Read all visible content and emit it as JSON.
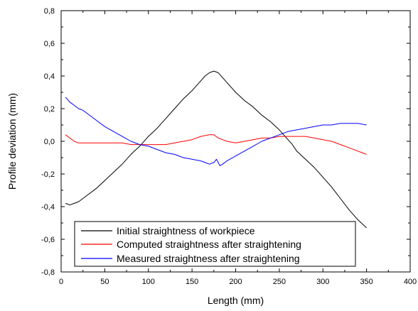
{
  "chart_data": {
    "type": "line",
    "title": "",
    "xlabel": "Length (mm)",
    "ylabel": "Profile deviation (mm)",
    "xlim": [
      0,
      400
    ],
    "ylim": [
      -0.8,
      0.8
    ],
    "xticks": [
      0,
      50,
      100,
      150,
      200,
      250,
      300,
      350,
      400
    ],
    "yticks": [
      -0.8,
      -0.6,
      -0.4,
      -0.2,
      0.0,
      0.2,
      0.4,
      0.6,
      0.8
    ],
    "xtick_labels": [
      "0",
      "50",
      "100",
      "150",
      "200",
      "250",
      "300",
      "350",
      "400"
    ],
    "ytick_labels": [
      "-0,8",
      "-0,6",
      "-0,4",
      "-0,2",
      "0,0",
      "0,2",
      "0,4",
      "0,6",
      "0,8"
    ],
    "grid": false,
    "legend_position": "bottom-left",
    "series": [
      {
        "name": "Initial straightness of workpiece",
        "color": "#000000",
        "x": [
          5,
          10,
          15,
          20,
          25,
          30,
          40,
          50,
          60,
          70,
          80,
          90,
          100,
          110,
          120,
          130,
          140,
          150,
          160,
          165,
          170,
          175,
          180,
          185,
          190,
          200,
          210,
          220,
          230,
          240,
          250,
          255,
          260,
          265,
          270,
          280,
          290,
          300,
          310,
          320,
          330,
          340,
          350
        ],
        "y": [
          -0.38,
          -0.39,
          -0.38,
          -0.37,
          -0.35,
          -0.33,
          -0.29,
          -0.24,
          -0.19,
          -0.14,
          -0.08,
          -0.03,
          0.03,
          0.08,
          0.14,
          0.2,
          0.26,
          0.31,
          0.37,
          0.4,
          0.42,
          0.43,
          0.42,
          0.39,
          0.36,
          0.3,
          0.25,
          0.21,
          0.16,
          0.12,
          0.07,
          0.04,
          0.01,
          -0.02,
          -0.06,
          -0.11,
          -0.16,
          -0.22,
          -0.28,
          -0.35,
          -0.42,
          -0.48,
          -0.53
        ]
      },
      {
        "name": "Computed straightness after straightening",
        "color": "#ff0000",
        "x": [
          5,
          10,
          15,
          20,
          25,
          30,
          40,
          50,
          60,
          70,
          80,
          90,
          100,
          110,
          120,
          130,
          140,
          150,
          160,
          170,
          175,
          180,
          185,
          190,
          200,
          210,
          220,
          230,
          240,
          250,
          260,
          270,
          280,
          290,
          300,
          310,
          320,
          330,
          340,
          350
        ],
        "y": [
          0.04,
          0.02,
          0.0,
          -0.01,
          -0.01,
          -0.01,
          -0.01,
          -0.01,
          -0.01,
          -0.01,
          -0.02,
          -0.02,
          -0.02,
          -0.02,
          -0.02,
          -0.01,
          0.0,
          0.01,
          0.03,
          0.04,
          0.04,
          0.02,
          0.01,
          0.0,
          -0.01,
          0.0,
          0.01,
          0.02,
          0.02,
          0.03,
          0.03,
          0.03,
          0.03,
          0.02,
          0.01,
          0.0,
          -0.02,
          -0.04,
          -0.06,
          -0.08
        ]
      },
      {
        "name": "Measured straightness after straightening",
        "color": "#0000ff",
        "x": [
          5,
          10,
          15,
          20,
          25,
          30,
          40,
          50,
          60,
          70,
          80,
          90,
          100,
          110,
          120,
          130,
          140,
          150,
          160,
          165,
          170,
          175,
          178,
          182,
          185,
          190,
          200,
          210,
          220,
          230,
          240,
          250,
          260,
          270,
          280,
          290,
          300,
          310,
          320,
          330,
          340,
          350
        ],
        "y": [
          0.27,
          0.24,
          0.22,
          0.2,
          0.19,
          0.17,
          0.13,
          0.09,
          0.06,
          0.03,
          0.0,
          -0.02,
          -0.03,
          -0.05,
          -0.07,
          -0.08,
          -0.1,
          -0.11,
          -0.12,
          -0.13,
          -0.14,
          -0.13,
          -0.11,
          -0.15,
          -0.14,
          -0.12,
          -0.09,
          -0.06,
          -0.03,
          0.0,
          0.02,
          0.04,
          0.06,
          0.07,
          0.08,
          0.09,
          0.1,
          0.1,
          0.11,
          0.11,
          0.11,
          0.1
        ]
      }
    ]
  }
}
